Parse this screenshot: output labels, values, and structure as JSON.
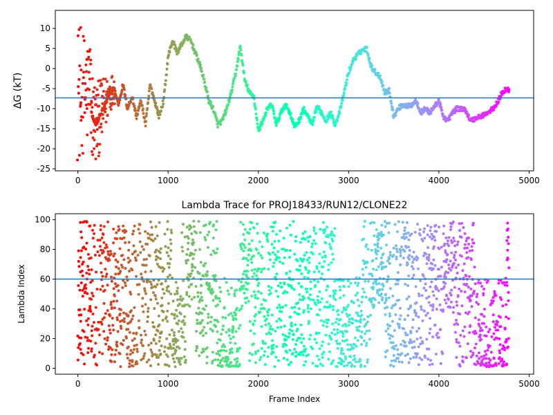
{
  "chart_data": [
    {
      "type": "scatter",
      "title": "",
      "xlabel": "",
      "ylabel": "ΔG (kT)",
      "xlim": [
        -250,
        5050
      ],
      "ylim": [
        -25.5,
        14.5
      ],
      "xticks": [
        0,
        1000,
        2000,
        3000,
        4000,
        5000
      ],
      "yticks": [
        -25,
        -20,
        -15,
        -10,
        -5,
        0,
        5,
        10
      ],
      "hline": -7.3,
      "hline_color": "#1f77b4",
      "colormap": "rainbow (red at frame 0 to violet at last frame)",
      "x_max_frame": 4780,
      "trace_keypoints": [
        [
          150,
          -11
        ],
        [
          200,
          -14
        ],
        [
          300,
          -9
        ],
        [
          350,
          -6
        ],
        [
          400,
          -5
        ],
        [
          450,
          -9
        ],
        [
          500,
          -4
        ],
        [
          550,
          -10
        ],
        [
          600,
          -7
        ],
        [
          650,
          -12
        ],
        [
          700,
          -8
        ],
        [
          750,
          -14
        ],
        [
          800,
          -4
        ],
        [
          850,
          -8
        ],
        [
          900,
          -12
        ],
        [
          950,
          -8
        ],
        [
          1000,
          3
        ],
        [
          1050,
          7
        ],
        [
          1100,
          4
        ],
        [
          1150,
          6
        ],
        [
          1200,
          8
        ],
        [
          1250,
          7
        ],
        [
          1300,
          4
        ],
        [
          1350,
          1
        ],
        [
          1400,
          -3
        ],
        [
          1450,
          -8
        ],
        [
          1500,
          -10
        ],
        [
          1550,
          -14
        ],
        [
          1600,
          -13
        ],
        [
          1650,
          -10
        ],
        [
          1700,
          -6
        ],
        [
          1750,
          -1
        ],
        [
          1800,
          5.5
        ],
        [
          1850,
          -3
        ],
        [
          1900,
          -6
        ],
        [
          1950,
          -7
        ],
        [
          2000,
          -15.5
        ],
        [
          2050,
          -13
        ],
        [
          2100,
          -10
        ],
        [
          2150,
          -9
        ],
        [
          2200,
          -14
        ],
        [
          2250,
          -11
        ],
        [
          2300,
          -9
        ],
        [
          2350,
          -11
        ],
        [
          2400,
          -14.5
        ],
        [
          2450,
          -13
        ],
        [
          2500,
          -10
        ],
        [
          2550,
          -12
        ],
        [
          2600,
          -14
        ],
        [
          2650,
          -9.5
        ],
        [
          2700,
          -11
        ],
        [
          2750,
          -13
        ],
        [
          2800,
          -11
        ],
        [
          2850,
          -14
        ],
        [
          2900,
          -11
        ],
        [
          2950,
          -6
        ],
        [
          3000,
          -1
        ],
        [
          3050,
          2
        ],
        [
          3100,
          3.5
        ],
        [
          3150,
          4.5
        ],
        [
          3200,
          5
        ],
        [
          3250,
          0.5
        ],
        [
          3300,
          -1
        ],
        [
          3350,
          -2
        ],
        [
          3400,
          -6
        ],
        [
          3450,
          -5.5
        ],
        [
          3500,
          -12
        ],
        [
          3550,
          -10
        ],
        [
          3600,
          -9
        ],
        [
          3650,
          -9.5
        ],
        [
          3700,
          -9
        ],
        [
          3750,
          -8
        ],
        [
          3800,
          -11
        ],
        [
          3850,
          -10
        ],
        [
          3900,
          -11
        ],
        [
          3950,
          -9.5
        ],
        [
          4000,
          -8
        ],
        [
          4050,
          -12
        ],
        [
          4100,
          -13
        ],
        [
          4150,
          -11
        ],
        [
          4200,
          -10
        ],
        [
          4250,
          -10
        ],
        [
          4300,
          -10.5
        ],
        [
          4350,
          -13
        ],
        [
          4400,
          -12.5
        ],
        [
          4450,
          -12
        ],
        [
          4500,
          -11.5
        ],
        [
          4550,
          -11
        ],
        [
          4600,
          -10
        ],
        [
          4650,
          -8.5
        ],
        [
          4700,
          -6
        ],
        [
          4750,
          -5
        ],
        [
          4780,
          -5.5
        ]
      ],
      "early_scatter_range": [
        -23,
        12
      ]
    },
    {
      "type": "scatter",
      "title": "Lambda Trace for PROJ18433/RUN12/CLONE22",
      "xlabel": "Frame Index",
      "ylabel": "Lambda Index",
      "xlim": [
        -250,
        5050
      ],
      "ylim": [
        -4,
        104
      ],
      "xticks": [
        0,
        1000,
        2000,
        3000,
        4000,
        5000
      ],
      "yticks": [
        0,
        20,
        40,
        60,
        80,
        100
      ],
      "hline": 60,
      "hline_color": "#1f77b4",
      "lambda_range": [
        1,
        99
      ],
      "x_max_frame": 4780,
      "low_bands": [
        [
          1050,
          1150
        ],
        [
          1550,
          1800
        ],
        [
          2850,
          3150
        ],
        [
          4400,
          4750
        ]
      ],
      "high_bands": [
        [
          1200,
          1300
        ],
        [
          1800,
          1900
        ],
        [
          3250,
          3400
        ],
        [
          4050,
          4150
        ]
      ]
    }
  ]
}
